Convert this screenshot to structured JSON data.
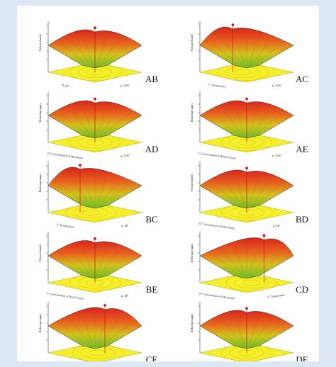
{
  "chart_data": {
    "type": "surface",
    "panels": [
      {
        "label": "AB",
        "zlabel": "Polysaccharide",
        "xlabel": "B: pH",
        "ylabel": "A: Time"
      },
      {
        "label": "AC",
        "zlabel": "Polysaccharide",
        "xlabel": "C: Temperature",
        "ylabel": "A: Time"
      },
      {
        "label": "AD",
        "zlabel": "Reducing sugars",
        "xlabel": "D: Concentration of Mushroom",
        "ylabel": "A: Time"
      },
      {
        "label": "AE",
        "zlabel": "Reducing sugars",
        "xlabel": "E: Concentration of Basal Extract",
        "ylabel": "A: Time"
      },
      {
        "label": "BC",
        "zlabel": "Reducing sugars",
        "xlabel": "C: Temperature",
        "ylabel": "B: pH"
      },
      {
        "label": "BD",
        "zlabel": "Polysaccharide",
        "xlabel": "D: Concentration of Mushroom",
        "ylabel": "B: pH"
      },
      {
        "label": "BE",
        "zlabel": "Polysaccharide",
        "xlabel": "E: Concentration of Basal Extract",
        "ylabel": "B: pH"
      },
      {
        "label": "CD",
        "zlabel": "Reducing sugars",
        "xlabel": "D: Concentration of Mushroom",
        "ylabel": "C: Temperature"
      },
      {
        "label": "CE",
        "zlabel": "Reducing sugars",
        "xlabel": "E: Concentration of Basal Extract",
        "ylabel": "C: Temperature"
      },
      {
        "label": "DE",
        "zlabel": "Reducing sugars",
        "xlabel": "E: Concentration of Basal Extract",
        "ylabel": "D: Concentration of Mushroom"
      }
    ]
  }
}
